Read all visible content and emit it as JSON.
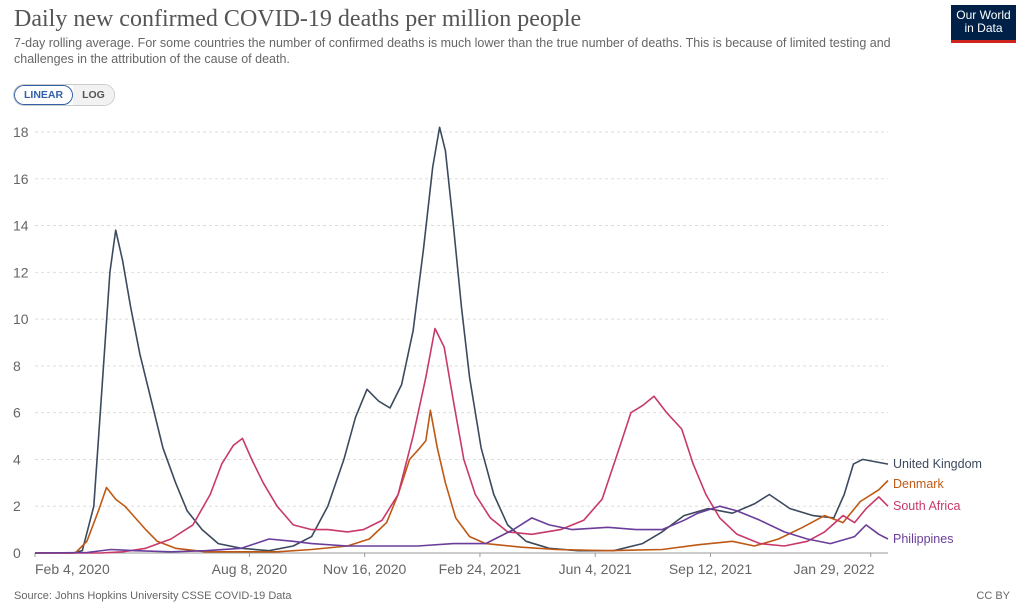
{
  "title": "Daily new confirmed COVID-19 deaths per million people",
  "subtitle": "7-day rolling average. For some countries the number of confirmed deaths is much lower than the true number of deaths. This is because of limited testing and challenges in the attribution of the cause of death.",
  "logo": {
    "line1": "Our World",
    "line2": "in Data"
  },
  "scale_toggle": {
    "options": [
      "LINEAR",
      "LOG"
    ],
    "selected": "LINEAR"
  },
  "source": "Source: Johns Hopkins University CSSE COVID-19 Data",
  "license": "CC BY",
  "chart_data": {
    "type": "line",
    "x_start": "2020-02-04",
    "x_end": "2022-02-13",
    "xticks": [
      "Feb 4, 2020",
      "Aug 8, 2020",
      "Nov 16, 2020",
      "Feb 24, 2021",
      "Jun 4, 2021",
      "Sep 12, 2021",
      "Jan 29, 2022"
    ],
    "ylim": [
      0,
      18
    ],
    "yticks": [
      0,
      2,
      4,
      6,
      8,
      10,
      12,
      14,
      16,
      18
    ],
    "grid": "horizontal dashed",
    "legend": "right, at line ends",
    "series": [
      {
        "name": "United Kingdom",
        "color": "#3c4a5e",
        "points": [
          [
            "2020-02-04",
            0
          ],
          [
            "2020-03-08",
            0
          ],
          [
            "2020-03-16",
            0.1
          ],
          [
            "2020-03-26",
            2
          ],
          [
            "2020-04-02",
            7
          ],
          [
            "2020-04-09",
            12
          ],
          [
            "2020-04-14",
            13.8
          ],
          [
            "2020-04-20",
            12.5
          ],
          [
            "2020-04-27",
            10.5
          ],
          [
            "2020-05-05",
            8.5
          ],
          [
            "2020-05-15",
            6.5
          ],
          [
            "2020-05-25",
            4.5
          ],
          [
            "2020-06-05",
            3.0
          ],
          [
            "2020-06-15",
            1.8
          ],
          [
            "2020-06-28",
            1.0
          ],
          [
            "2020-07-12",
            0.4
          ],
          [
            "2020-08-01",
            0.2
          ],
          [
            "2020-08-25",
            0.1
          ],
          [
            "2020-09-15",
            0.3
          ],
          [
            "2020-10-01",
            0.7
          ],
          [
            "2020-10-15",
            2
          ],
          [
            "2020-10-29",
            4
          ],
          [
            "2020-11-08",
            5.8
          ],
          [
            "2020-11-18",
            7.0
          ],
          [
            "2020-11-28",
            6.5
          ],
          [
            "2020-12-08",
            6.2
          ],
          [
            "2020-12-18",
            7.2
          ],
          [
            "2020-12-28",
            9.5
          ],
          [
            "2021-01-06",
            13
          ],
          [
            "2021-01-14",
            16.5
          ],
          [
            "2021-01-20",
            18.2
          ],
          [
            "2021-01-25",
            17.2
          ],
          [
            "2021-02-01",
            14
          ],
          [
            "2021-02-08",
            10.5
          ],
          [
            "2021-02-15",
            7.5
          ],
          [
            "2021-02-25",
            4.5
          ],
          [
            "2021-03-08",
            2.5
          ],
          [
            "2021-03-20",
            1.2
          ],
          [
            "2021-04-05",
            0.5
          ],
          [
            "2021-04-25",
            0.2
          ],
          [
            "2021-05-20",
            0.1
          ],
          [
            "2021-06-20",
            0.1
          ],
          [
            "2021-07-15",
            0.4
          ],
          [
            "2021-08-01",
            0.9
          ],
          [
            "2021-08-20",
            1.6
          ],
          [
            "2021-09-10",
            1.9
          ],
          [
            "2021-10-01",
            1.7
          ],
          [
            "2021-10-20",
            2.1
          ],
          [
            "2021-11-02",
            2.5
          ],
          [
            "2021-11-20",
            1.9
          ],
          [
            "2021-12-10",
            1.6
          ],
          [
            "2021-12-28",
            1.5
          ],
          [
            "2022-01-06",
            2.5
          ],
          [
            "2022-01-14",
            3.8
          ],
          [
            "2022-01-22",
            4.0
          ],
          [
            "2022-02-13",
            3.8
          ]
        ]
      },
      {
        "name": "Denmark",
        "color": "#be5915",
        "points": [
          [
            "2020-02-04",
            0
          ],
          [
            "2020-03-10",
            0
          ],
          [
            "2020-03-20",
            0.5
          ],
          [
            "2020-03-30",
            1.8
          ],
          [
            "2020-04-06",
            2.8
          ],
          [
            "2020-04-14",
            2.3
          ],
          [
            "2020-04-22",
            2.0
          ],
          [
            "2020-05-01",
            1.5
          ],
          [
            "2020-05-10",
            1.0
          ],
          [
            "2020-05-20",
            0.5
          ],
          [
            "2020-06-05",
            0.2
          ],
          [
            "2020-07-01",
            0.05
          ],
          [
            "2020-09-01",
            0.05
          ],
          [
            "2020-10-01",
            0.15
          ],
          [
            "2020-11-01",
            0.3
          ],
          [
            "2020-11-20",
            0.6
          ],
          [
            "2020-12-05",
            1.3
          ],
          [
            "2020-12-15",
            2.5
          ],
          [
            "2020-12-25",
            4.0
          ],
          [
            "2021-01-03",
            4.5
          ],
          [
            "2021-01-08",
            4.8
          ],
          [
            "2021-01-12",
            6.1
          ],
          [
            "2021-01-18",
            4.5
          ],
          [
            "2021-01-25",
            3.0
          ],
          [
            "2021-02-03",
            1.5
          ],
          [
            "2021-02-15",
            0.7
          ],
          [
            "2021-03-01",
            0.4
          ],
          [
            "2021-04-01",
            0.25
          ],
          [
            "2021-05-01",
            0.15
          ],
          [
            "2021-06-15",
            0.1
          ],
          [
            "2021-08-01",
            0.15
          ],
          [
            "2021-09-01",
            0.35
          ],
          [
            "2021-10-01",
            0.5
          ],
          [
            "2021-10-20",
            0.3
          ],
          [
            "2021-11-10",
            0.6
          ],
          [
            "2021-12-01",
            1.1
          ],
          [
            "2021-12-20",
            1.6
          ],
          [
            "2022-01-05",
            1.3
          ],
          [
            "2022-01-20",
            2.2
          ],
          [
            "2022-02-05",
            2.7
          ],
          [
            "2022-02-13",
            3.1
          ]
        ]
      },
      {
        "name": "South Africa",
        "color": "#c8396a",
        "points": [
          [
            "2020-02-04",
            0
          ],
          [
            "2020-04-01",
            0
          ],
          [
            "2020-04-20",
            0.05
          ],
          [
            "2020-05-10",
            0.2
          ],
          [
            "2020-06-01",
            0.6
          ],
          [
            "2020-06-20",
            1.2
          ],
          [
            "2020-07-05",
            2.5
          ],
          [
            "2020-07-15",
            3.8
          ],
          [
            "2020-07-25",
            4.6
          ],
          [
            "2020-08-02",
            4.9
          ],
          [
            "2020-08-10",
            4.0
          ],
          [
            "2020-08-20",
            3.0
          ],
          [
            "2020-09-01",
            2.0
          ],
          [
            "2020-09-15",
            1.2
          ],
          [
            "2020-10-01",
            1.0
          ],
          [
            "2020-10-15",
            1.0
          ],
          [
            "2020-11-01",
            0.9
          ],
          [
            "2020-11-15",
            1.0
          ],
          [
            "2020-12-01",
            1.4
          ],
          [
            "2020-12-15",
            2.5
          ],
          [
            "2020-12-28",
            5.0
          ],
          [
            "2021-01-08",
            7.5
          ],
          [
            "2021-01-16",
            9.6
          ],
          [
            "2021-01-24",
            8.8
          ],
          [
            "2021-02-01",
            6.5
          ],
          [
            "2021-02-10",
            4.0
          ],
          [
            "2021-02-20",
            2.5
          ],
          [
            "2021-03-05",
            1.5
          ],
          [
            "2021-03-20",
            0.9
          ],
          [
            "2021-04-10",
            0.8
          ],
          [
            "2021-05-05",
            1.0
          ],
          [
            "2021-05-25",
            1.4
          ],
          [
            "2021-06-10",
            2.3
          ],
          [
            "2021-06-25",
            4.5
          ],
          [
            "2021-07-05",
            6.0
          ],
          [
            "2021-07-15",
            6.3
          ],
          [
            "2021-07-25",
            6.7
          ],
          [
            "2021-08-05",
            6.0
          ],
          [
            "2021-08-18",
            5.3
          ],
          [
            "2021-08-28",
            3.8
          ],
          [
            "2021-09-08",
            2.5
          ],
          [
            "2021-09-20",
            1.5
          ],
          [
            "2021-10-05",
            0.8
          ],
          [
            "2021-10-25",
            0.4
          ],
          [
            "2021-11-15",
            0.3
          ],
          [
            "2021-12-05",
            0.5
          ],
          [
            "2021-12-20",
            0.9
          ],
          [
            "2022-01-05",
            1.6
          ],
          [
            "2022-01-15",
            1.3
          ],
          [
            "2022-01-25",
            1.9
          ],
          [
            "2022-02-05",
            2.4
          ],
          [
            "2022-02-13",
            2.0
          ]
        ]
      },
      {
        "name": "Philippines",
        "color": "#6a3d9a",
        "points": [
          [
            "2020-02-04",
            0
          ],
          [
            "2020-03-20",
            0.02
          ],
          [
            "2020-04-10",
            0.15
          ],
          [
            "2020-05-01",
            0.1
          ],
          [
            "2020-06-01",
            0.05
          ],
          [
            "2020-07-01",
            0.1
          ],
          [
            "2020-08-01",
            0.2
          ],
          [
            "2020-08-25",
            0.6
          ],
          [
            "2020-09-15",
            0.5
          ],
          [
            "2020-10-01",
            0.4
          ],
          [
            "2020-11-01",
            0.3
          ],
          [
            "2020-12-01",
            0.3
          ],
          [
            "2021-01-01",
            0.3
          ],
          [
            "2021-02-01",
            0.4
          ],
          [
            "2021-03-01",
            0.4
          ],
          [
            "2021-03-25",
            1.0
          ],
          [
            "2021-04-10",
            1.5
          ],
          [
            "2021-04-25",
            1.2
          ],
          [
            "2021-05-15",
            1.0
          ],
          [
            "2021-06-15",
            1.1
          ],
          [
            "2021-07-10",
            1.0
          ],
          [
            "2021-08-01",
            1.0
          ],
          [
            "2021-08-20",
            1.4
          ],
          [
            "2021-09-01",
            1.7
          ],
          [
            "2021-09-20",
            2.0
          ],
          [
            "2021-10-05",
            1.8
          ],
          [
            "2021-10-25",
            1.4
          ],
          [
            "2021-11-15",
            0.9
          ],
          [
            "2021-12-05",
            0.6
          ],
          [
            "2021-12-25",
            0.4
          ],
          [
            "2022-01-15",
            0.7
          ],
          [
            "2022-01-25",
            1.2
          ],
          [
            "2022-02-05",
            0.8
          ],
          [
            "2022-02-13",
            0.6
          ]
        ]
      }
    ]
  }
}
